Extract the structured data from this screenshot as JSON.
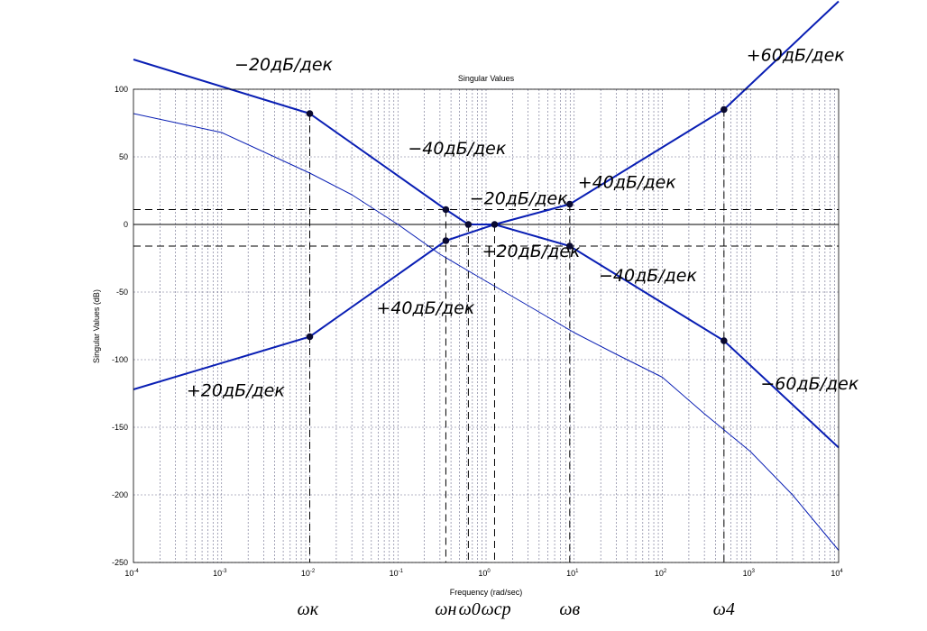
{
  "chart_data": {
    "type": "line",
    "title": "Singular Values",
    "xlabel": "Frequency (rad/sec)",
    "ylabel": "Singular Values (dB)",
    "x_scale": "log",
    "xlim": [
      0.0001,
      10000
    ],
    "ylim": [
      -250,
      100
    ],
    "x_ticks": [
      {
        "base": "10",
        "exp": "-4",
        "value": 0.0001
      },
      {
        "base": "10",
        "exp": "-3",
        "value": 0.001
      },
      {
        "base": "10",
        "exp": "-2",
        "value": 0.01
      },
      {
        "base": "10",
        "exp": "-1",
        "value": 0.1
      },
      {
        "base": "10",
        "exp": "0",
        "value": 1
      },
      {
        "base": "10",
        "exp": "1",
        "value": 10
      },
      {
        "base": "10",
        "exp": "2",
        "value": 100
      },
      {
        "base": "10",
        "exp": "3",
        "value": 1000
      },
      {
        "base": "10",
        "exp": "4",
        "value": 10000
      }
    ],
    "y_ticks": [
      "100",
      "50",
      "0",
      "-50",
      "-100",
      "-150",
      "-200",
      "-250"
    ],
    "grid": true,
    "colors": {
      "series": "#0a1fb4",
      "grid": "#6a6a8a",
      "axis": "#000000"
    },
    "series": [
      {
        "points": [
          [
            0.0001,
            122
          ],
          [
            0.01,
            82
          ],
          [
            0.35,
            11
          ],
          [
            0.63,
            0
          ],
          [
            1.25,
            0
          ],
          [
            8.9,
            -16
          ],
          [
            500,
            -86
          ],
          [
            10000,
            -165
          ]
        ]
      },
      {
        "points": [
          [
            0.0001,
            -122
          ],
          [
            0.01,
            -83
          ],
          [
            0.35,
            -12
          ],
          [
            1.25,
            0
          ],
          [
            8.9,
            15
          ],
          [
            500,
            85
          ],
          [
            10000,
            165
          ]
        ]
      },
      {
        "points": [
          [
            0.0001,
            82
          ],
          [
            0.001,
            68
          ],
          [
            0.01,
            38
          ],
          [
            0.03,
            22
          ],
          [
            0.1,
            0
          ],
          [
            0.3,
            -22
          ],
          [
            1,
            -42
          ],
          [
            3,
            -60
          ],
          [
            10,
            -80
          ],
          [
            30,
            -96
          ],
          [
            100,
            -113
          ],
          [
            300,
            -140
          ],
          [
            1000,
            -168
          ],
          [
            3000,
            -200
          ],
          [
            10000,
            -241
          ]
        ]
      }
    ],
    "markers": [
      [
        0.01,
        82
      ],
      [
        0.35,
        11
      ],
      [
        0.63,
        0
      ],
      [
        1.25,
        0
      ],
      [
        8.9,
        -16
      ],
      [
        500,
        -86
      ],
      [
        0.01,
        -83
      ],
      [
        0.35,
        -12
      ],
      [
        8.9,
        15
      ],
      [
        500,
        85
      ]
    ],
    "reference_lines": {
      "y": [
        11,
        0,
        -16
      ]
    },
    "vertical_drops": [
      {
        "x": 0.01,
        "y": 82
      },
      {
        "x": 0.35,
        "y": 11
      },
      {
        "x": 0.63,
        "y": 0
      },
      {
        "x": 1.25,
        "y": 0
      },
      {
        "x": 8.9,
        "y": 15
      },
      {
        "x": 500,
        "y": 85
      }
    ],
    "annotations": [
      {
        "text": "−20дБ/дек",
        "x": 0.0014,
        "y": 114
      },
      {
        "text": "−40дБ/дек",
        "x": 0.13,
        "y": 52
      },
      {
        "text": "−20дБ/дек",
        "x": 0.65,
        "y": 15
      },
      {
        "text": "+20дБ/дек",
        "x": 0.9,
        "y": -24
      },
      {
        "text": "+40дБ/дек",
        "x": 11,
        "y": 27
      },
      {
        "text": "−40дБ/дек",
        "x": 19,
        "y": -42
      },
      {
        "text": "+40дБ/дек",
        "x": 0.057,
        "y": -66
      },
      {
        "text": "+20дБ/дек",
        "x": 0.0004,
        "y": -127
      },
      {
        "text": "+60дБ/дек",
        "x": 900,
        "y": 121
      },
      {
        "text": "−60дБ/дек",
        "x": 1300,
        "y": -122
      }
    ],
    "freq_labels": [
      {
        "text": "ωк",
        "x": 0.0095
      },
      {
        "text": "ωн",
        "x": 0.35
      },
      {
        "text": "ω0",
        "x": 0.65
      },
      {
        "text": "ωср",
        "x": 1.3
      },
      {
        "text": "ωв",
        "x": 8.9
      },
      {
        "text": "ω4",
        "x": 500
      }
    ]
  }
}
